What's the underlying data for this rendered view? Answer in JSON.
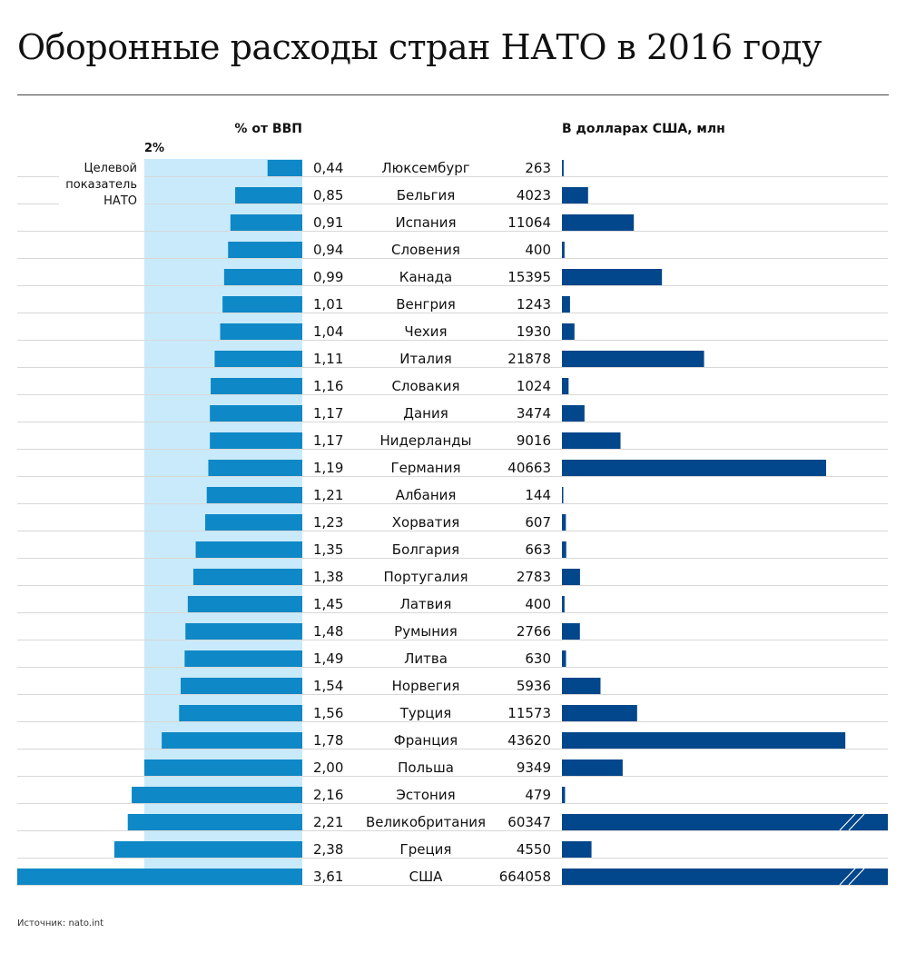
{
  "title": "Оборонные расходы стран НАТО в 2016 году",
  "source": "Источник: nato.int",
  "chart_data": {
    "type": "bar",
    "header_left": "% от ВВП",
    "header_right": "В долларах США, млн",
    "target_label": "2%",
    "target_value": 2,
    "target_note": [
      "Целевой",
      "показатель",
      "НАТО"
    ],
    "colors": {
      "gdp_bar": "#0e88c6",
      "target_band": "#c9eafb",
      "usd_bar": "#02468b",
      "grid": "#d8d8d8"
    },
    "categories": [
      "Люксембург",
      "Бельгия",
      "Испания",
      "Словения",
      "Канада",
      "Венгрия",
      "Чехия",
      "Италия",
      "Словакия",
      "Дания",
      "Нидерланды",
      "Германия",
      "Албания",
      "Хорватия",
      "Болгария",
      "Португалия",
      "Латвия",
      "Румыния",
      "Литва",
      "Норвегия",
      "Турция",
      "Франция",
      "Польша",
      "Эстония",
      "Великобритания",
      "Греция",
      "США"
    ],
    "series": [
      {
        "name": "% от ВВП",
        "labels": [
          "0,44",
          "0,85",
          "0,91",
          "0,94",
          "0,99",
          "1,01",
          "1,04",
          "1,11",
          "1,16",
          "1,17",
          "1,17",
          "1,19",
          "1,21",
          "1,23",
          "1,35",
          "1,38",
          "1,45",
          "1,48",
          "1,49",
          "1,54",
          "1,56",
          "1,78",
          "2,00",
          "2,16",
          "2,21",
          "2,38",
          "3,61"
        ],
        "values": [
          0.44,
          0.85,
          0.91,
          0.94,
          0.99,
          1.01,
          1.04,
          1.11,
          1.16,
          1.17,
          1.17,
          1.19,
          1.21,
          1.23,
          1.35,
          1.38,
          1.45,
          1.48,
          1.49,
          1.54,
          1.56,
          1.78,
          2.0,
          2.16,
          2.21,
          2.38,
          3.61
        ]
      },
      {
        "name": "В долларах США, млн",
        "values": [
          263,
          4023,
          11064,
          400,
          15395,
          1243,
          1930,
          21878,
          1024,
          3474,
          9016,
          40663,
          144,
          607,
          663,
          2783,
          400,
          2766,
          630,
          5936,
          11573,
          43620,
          9349,
          479,
          60347,
          4550,
          664058
        ],
        "truncated": [
          "Великобритания",
          "США"
        ]
      }
    ]
  }
}
